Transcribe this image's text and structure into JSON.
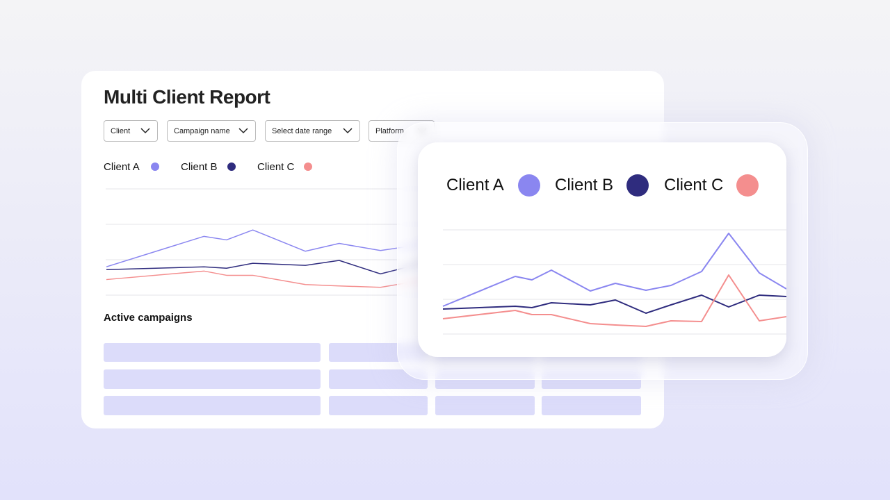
{
  "header": {
    "title": "Multi Client Report"
  },
  "filters": [
    "Client",
    "Campaign name",
    "Select date range",
    "Platform"
  ],
  "chart_data": {
    "type": "line",
    "x": [
      0,
      2.6,
      3.2,
      3.9,
      5.3,
      6.2,
      7.3,
      8.2,
      9.3,
      10.275,
      11.375,
      12.35
    ],
    "xlim": [
      0,
      12.35
    ],
    "ylim": [
      0,
      3
    ],
    "yticks": [
      0,
      1,
      2,
      3
    ],
    "grid": true,
    "series": [
      {
        "name": "Client A",
        "color": "#8a86f0",
        "values": [
          0.8,
          1.66,
          1.56,
          1.84,
          1.24,
          1.46,
          1.26,
          1.4,
          1.8,
          2.9,
          1.76,
          1.3
        ]
      },
      {
        "name": "Client B",
        "color": "#2f2c7e",
        "values": [
          0.72,
          0.8,
          0.76,
          0.9,
          0.84,
          0.98,
          0.6,
          0.84,
          1.12,
          0.78,
          1.12,
          1.08
        ]
      },
      {
        "name": "Client C",
        "color": "#f48e8e",
        "values": [
          0.44,
          0.68,
          0.56,
          0.56,
          0.3,
          0.26,
          0.22,
          0.38,
          0.36,
          1.7,
          0.38,
          0.5
        ]
      }
    ]
  },
  "section": {
    "title": "Active campaigns"
  }
}
